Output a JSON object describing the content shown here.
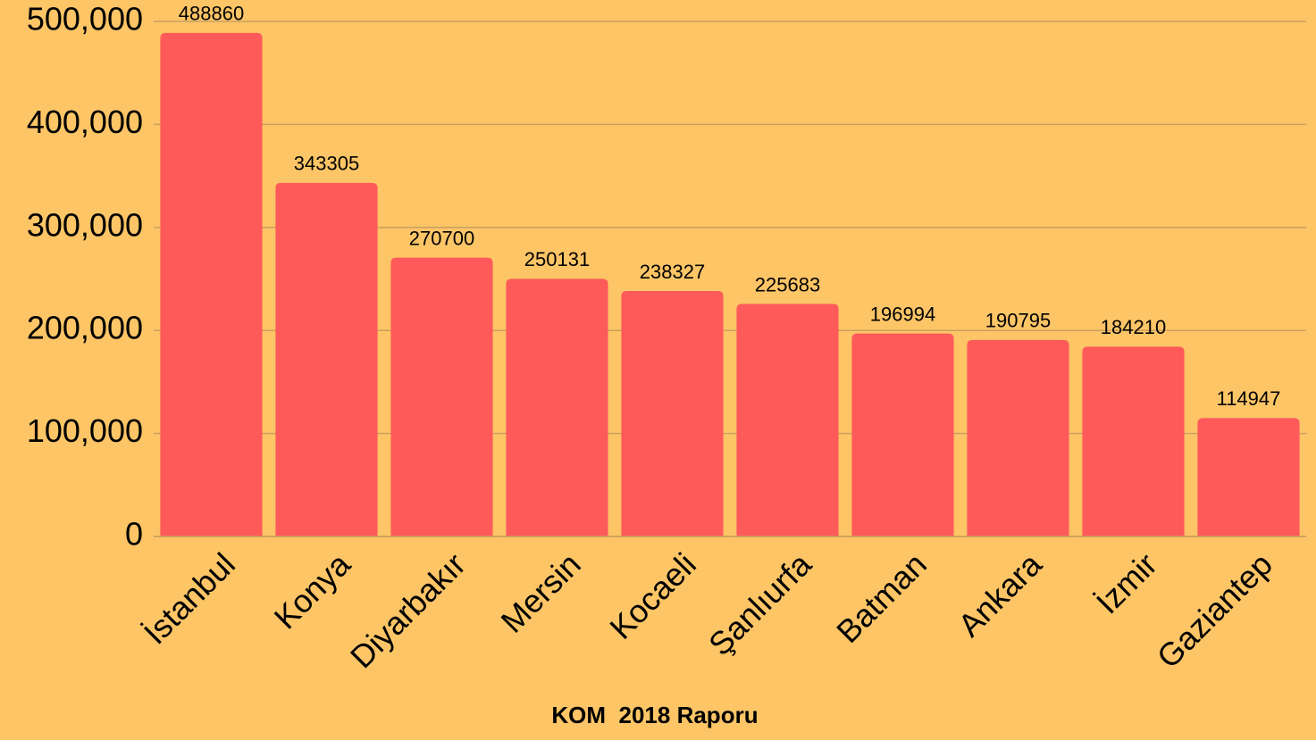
{
  "chart_data": {
    "type": "bar",
    "x_label": "KOM  2018 Raporu",
    "categories": [
      "İstanbul",
      "Konya",
      "Diyarbakır",
      "Mersin",
      "Kocaeli",
      "Şanlıurfa",
      "Batman",
      "Ankara",
      "İzmir",
      "Gaziantep"
    ],
    "values": [
      488860,
      343305,
      270700,
      250131,
      238327,
      225683,
      196994,
      190795,
      184210,
      114947
    ],
    "color": "#ff5a5a",
    "ylim": [
      0,
      500000
    ],
    "yticks": [
      0,
      {
        "value": 100000,
        "label": "100,000"
      },
      {
        "value": 200000,
        "label": "200,000"
      },
      {
        "value": 300000,
        "label": "300,000"
      },
      {
        "value": 400000,
        "label": "400,000"
      },
      {
        "value": 500000,
        "label": "500,000"
      }
    ],
    "grid": true
  }
}
